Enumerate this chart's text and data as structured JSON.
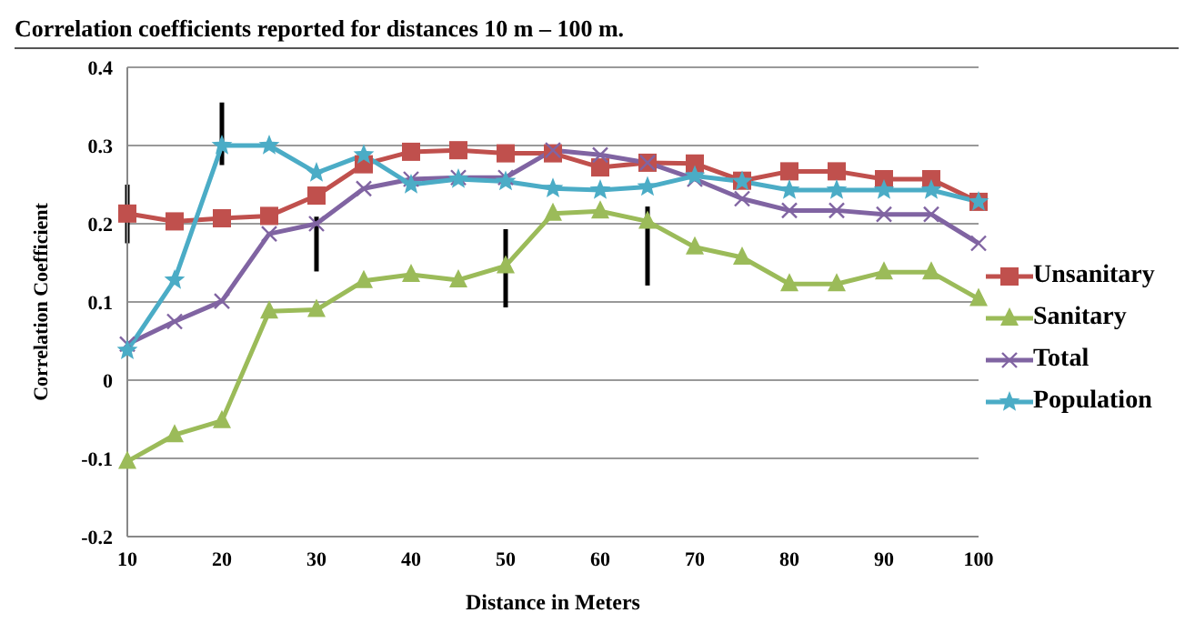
{
  "chart_data": {
    "type": "line",
    "title": "Correlation coefficients reported for distances 10 m – 100 m.",
    "xlabel": "Distance in Meters",
    "ylabel": "Correlation Coefficient",
    "categories": [
      "10",
      null,
      "20",
      null,
      "30",
      null,
      "40",
      null,
      "50",
      null,
      "60",
      null,
      "70",
      null,
      "80",
      null,
      "90",
      null,
      "100"
    ],
    "ylim": [
      -0.2,
      0.4
    ],
    "yticks": [
      -0.2,
      -0.1,
      0,
      0.1,
      0.2,
      0.3,
      0.4
    ],
    "grid": "y",
    "legend": "right",
    "series": [
      {
        "name": "Unsanitary",
        "color": "#c0504d",
        "marker": "square",
        "values": [
          0.213,
          0.203,
          0.207,
          0.21,
          0.236,
          0.276,
          0.292,
          0.294,
          0.29,
          0.29,
          0.272,
          0.278,
          0.277,
          0.255,
          0.267,
          0.267,
          0.257,
          0.257,
          0.228
        ],
        "errors": [
          [
            0.175,
            0.25
          ],
          null,
          null,
          null,
          null,
          null,
          null,
          null,
          null,
          null,
          null,
          null,
          null,
          null,
          null,
          null,
          null,
          null,
          null
        ]
      },
      {
        "name": "Sanitary",
        "color": "#9bbb59",
        "marker": "triangle",
        "values": [
          -0.104,
          -0.07,
          -0.052,
          0.088,
          0.09,
          0.127,
          0.135,
          0.128,
          0.146,
          0.213,
          0.216,
          0.203,
          0.17,
          0.157,
          0.123,
          0.123,
          0.138,
          0.138,
          0.104
        ],
        "errors": [
          null,
          null,
          null,
          null,
          null,
          null,
          null,
          null,
          [
            0.093,
            0.193
          ],
          null,
          null,
          [
            0.121,
            0.222
          ],
          null,
          null,
          null,
          null,
          null,
          null,
          null
        ]
      },
      {
        "name": "Total",
        "color": "#8064a2",
        "marker": "cross",
        "values": [
          0.046,
          0.075,
          0.101,
          0.187,
          0.2,
          0.245,
          0.257,
          0.259,
          0.259,
          0.294,
          0.288,
          0.278,
          0.257,
          0.232,
          0.217,
          0.217,
          0.212,
          0.212,
          0.175
        ],
        "errors": [
          null,
          null,
          null,
          null,
          [
            0.139,
            0.209
          ],
          null,
          null,
          null,
          null,
          null,
          null,
          null,
          null,
          null,
          null,
          null,
          null,
          null,
          null
        ]
      },
      {
        "name": "Population",
        "color": "#4bacc6",
        "marker": "star",
        "values": [
          0.038,
          0.128,
          0.3,
          0.3,
          0.265,
          0.288,
          0.25,
          0.257,
          0.254,
          0.245,
          0.243,
          0.247,
          0.261,
          0.254,
          0.243,
          0.243,
          0.243,
          0.243,
          0.228
        ],
        "errors": [
          null,
          null,
          [
            0.275,
            0.355
          ],
          null,
          null,
          null,
          null,
          null,
          null,
          null,
          null,
          null,
          null,
          null,
          null,
          null,
          null,
          null,
          null
        ]
      }
    ]
  }
}
